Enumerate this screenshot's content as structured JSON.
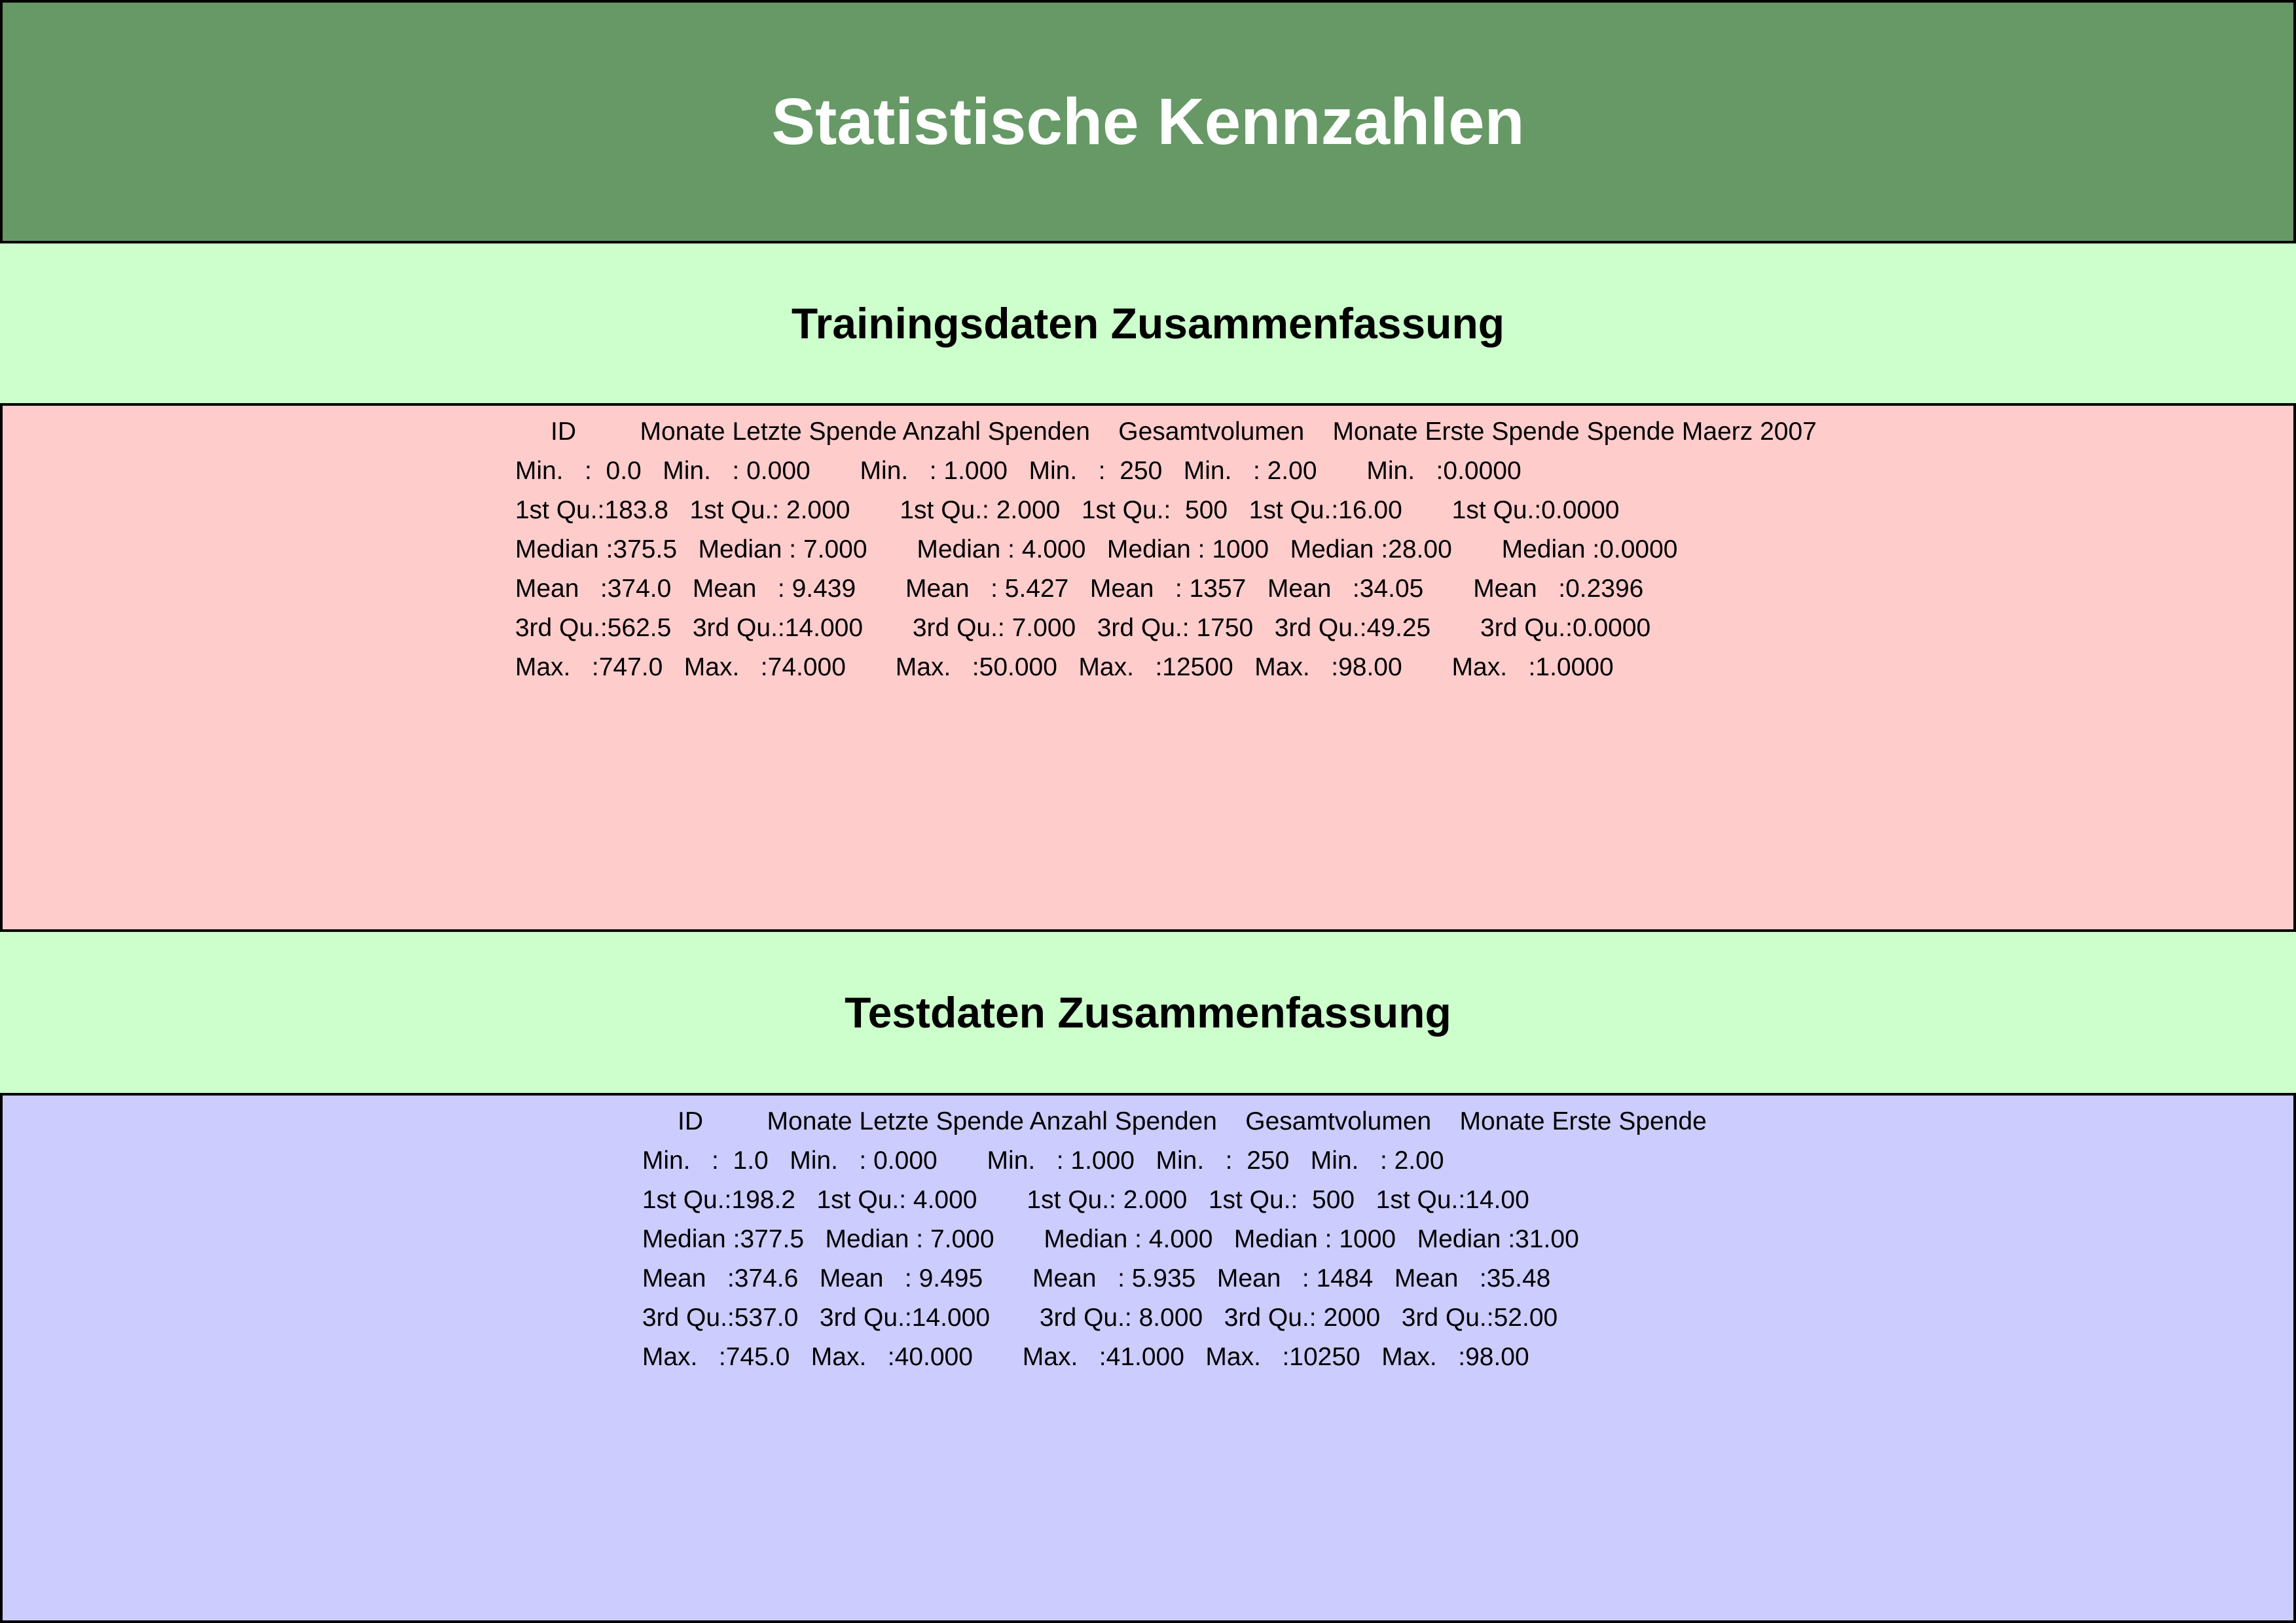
{
  "title": "Statistische Kennzahlen",
  "training": {
    "heading": "Trainingsdaten Zusammenfassung",
    "summary_lines": [
      "      ID         Monate Letzte Spende Anzahl Spenden    Gesamtvolumen    Monate Erste Spende Spende Maerz 2007",
      " Min.   :  0.0   Min.   : 0.000       Min.   : 1.000   Min.   :  250   Min.   : 2.00       Min.   :0.0000  ",
      " 1st Qu.:183.8   1st Qu.: 2.000       1st Qu.: 2.000   1st Qu.:  500   1st Qu.:16.00       1st Qu.:0.0000  ",
      " Median :375.5   Median : 7.000       Median : 4.000   Median : 1000   Median :28.00       Median :0.0000  ",
      " Mean   :374.0   Mean   : 9.439       Mean   : 5.427   Mean   : 1357   Mean   :34.05       Mean   :0.2396  ",
      " 3rd Qu.:562.5   3rd Qu.:14.000       3rd Qu.: 7.000   3rd Qu.: 1750   3rd Qu.:49.25       3rd Qu.:0.0000  ",
      " Max.   :747.0   Max.   :74.000       Max.   :50.000   Max.   :12500   Max.   :98.00       Max.   :1.0000  "
    ]
  },
  "test": {
    "heading": "Testdaten Zusammenfassung",
    "summary_lines": [
      "      ID         Monate Letzte Spende Anzahl Spenden    Gesamtvolumen    Monate Erste Spende",
      " Min.   :  1.0   Min.   : 0.000       Min.   : 1.000   Min.   :  250   Min.   : 2.00  ",
      " 1st Qu.:198.2   1st Qu.: 4.000       1st Qu.: 2.000   1st Qu.:  500   1st Qu.:14.00  ",
      " Median :377.5   Median : 7.000       Median : 4.000   Median : 1000   Median :31.00  ",
      " Mean   :374.6   Mean   : 9.495       Mean   : 5.935   Mean   : 1484   Mean   :35.48  ",
      " 3rd Qu.:537.0   3rd Qu.:14.000       3rd Qu.: 8.000   3rd Qu.: 2000   3rd Qu.:52.00  ",
      " Max.   :745.0   Max.   :40.000       Max.   :41.000   Max.   :10250   Max.   :98.00  "
    ]
  },
  "colors": {
    "title_background": "#669966",
    "title_text": "#ffffff",
    "page_background": "#ccffcc",
    "training_panel": "#ffcccc",
    "test_panel": "#ccccff",
    "border": "#000000"
  }
}
